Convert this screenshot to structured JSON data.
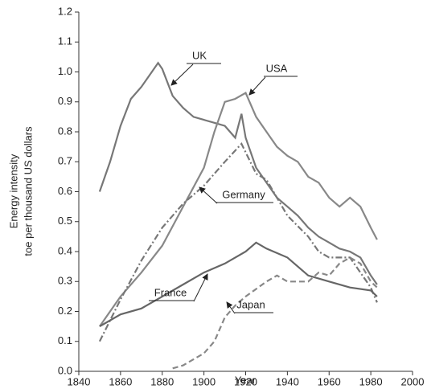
{
  "chart_data": {
    "type": "line",
    "xlabel": "Year",
    "ylabel": [
      "Energy intensity",
      "toe per thousand US dollars"
    ],
    "xlim": [
      1840,
      2000
    ],
    "xticks": [
      1840,
      1860,
      1880,
      1900,
      1920,
      1940,
      1960,
      1980,
      2000
    ],
    "ylim": [
      0,
      1.2
    ],
    "yticks": [
      {
        "value": 0,
        "label": "0.0"
      },
      0.1,
      0.2,
      0.3,
      0.4,
      0.5,
      0.6,
      0.7,
      0.8,
      0.9,
      {
        "value": 1,
        "label": "1.0"
      },
      1.1,
      1.2
    ],
    "series": [
      {
        "name": "UK",
        "color": "#777777",
        "dash": "solid",
        "x": [
          1850,
          1855,
          1860,
          1865,
          1870,
          1875,
          1878,
          1880,
          1885,
          1890,
          1895,
          1900,
          1905,
          1910,
          1915,
          1918,
          1920,
          1925,
          1930,
          1935,
          1940,
          1945,
          1950,
          1955,
          1960,
          1965,
          1970,
          1975,
          1980,
          1983
        ],
        "values": [
          0.6,
          0.7,
          0.82,
          0.91,
          0.95,
          1.0,
          1.03,
          1.01,
          0.92,
          0.88,
          0.85,
          0.84,
          0.83,
          0.82,
          0.78,
          0.86,
          0.78,
          0.68,
          0.63,
          0.58,
          0.55,
          0.52,
          0.48,
          0.45,
          0.43,
          0.41,
          0.4,
          0.38,
          0.32,
          0.29
        ]
      },
      {
        "name": "USA",
        "color": "#888888",
        "dash": "solid",
        "x": [
          1850,
          1860,
          1870,
          1880,
          1890,
          1900,
          1905,
          1910,
          1915,
          1920,
          1925,
          1930,
          1935,
          1940,
          1945,
          1950,
          1955,
          1960,
          1965,
          1970,
          1975,
          1980,
          1983
        ],
        "values": [
          0.15,
          0.25,
          0.33,
          0.42,
          0.55,
          0.68,
          0.8,
          0.9,
          0.91,
          0.93,
          0.85,
          0.8,
          0.75,
          0.72,
          0.7,
          0.65,
          0.63,
          0.58,
          0.55,
          0.58,
          0.55,
          0.48,
          0.44
        ]
      },
      {
        "name": "Germany",
        "color": "#777777",
        "dash": "dashdot",
        "x": [
          1850,
          1860,
          1870,
          1880,
          1890,
          1900,
          1910,
          1918,
          1925,
          1930,
          1935,
          1940,
          1950,
          1955,
          1960,
          1970,
          1980,
          1983
        ],
        "values": [
          0.1,
          0.24,
          0.37,
          0.48,
          0.56,
          0.62,
          0.7,
          0.76,
          0.66,
          0.64,
          0.58,
          0.52,
          0.45,
          0.4,
          0.38,
          0.38,
          0.28,
          0.23
        ]
      },
      {
        "name": "France",
        "color": "#666666",
        "dash": "solid",
        "x": [
          1850,
          1860,
          1870,
          1880,
          1890,
          1900,
          1910,
          1920,
          1925,
          1930,
          1940,
          1950,
          1960,
          1970,
          1980,
          1983
        ],
        "values": [
          0.15,
          0.19,
          0.21,
          0.25,
          0.29,
          0.33,
          0.36,
          0.4,
          0.43,
          0.41,
          0.38,
          0.32,
          0.3,
          0.28,
          0.27,
          0.25
        ]
      },
      {
        "name": "Japan",
        "color": "#888888",
        "dash": "dashed",
        "x": [
          1885,
          1890,
          1900,
          1905,
          1910,
          1915,
          1920,
          1930,
          1935,
          1940,
          1950,
          1955,
          1960,
          1965,
          1970,
          1975,
          1980,
          1983
        ],
        "values": [
          0.01,
          0.02,
          0.06,
          0.1,
          0.18,
          0.22,
          0.25,
          0.3,
          0.32,
          0.3,
          0.3,
          0.33,
          0.32,
          0.36,
          0.38,
          0.36,
          0.3,
          0.28
        ]
      }
    ]
  }
}
